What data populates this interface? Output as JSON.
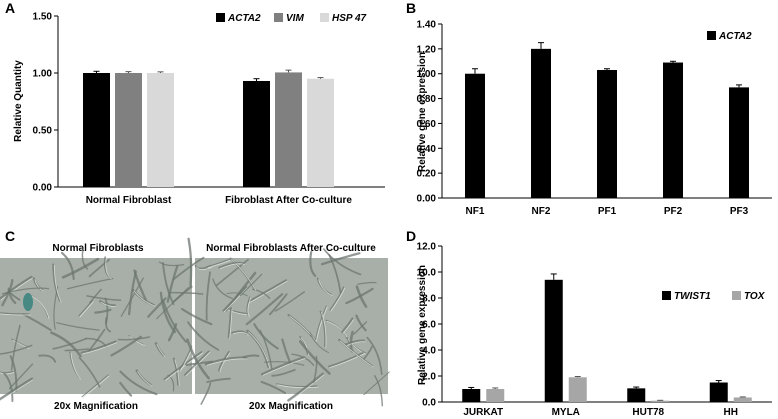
{
  "panels": {
    "a": {
      "letter": "A"
    },
    "b": {
      "letter": "B"
    },
    "c": {
      "letter": "C",
      "left_title": "Normal Fibroblasts",
      "right_title": "Normal Fibroblasts After Co-culture",
      "left_caption": "20x Magnification",
      "right_caption": "20x Magnification"
    },
    "d": {
      "letter": "D"
    }
  },
  "colors": {
    "black": "#000000",
    "dark_gray": "#808080",
    "light_gray": "#d9d9d9",
    "micro_bg": "#a8afa9"
  },
  "chart_data": [
    {
      "id": "a",
      "type": "bar",
      "ylabel": "Relative Quantity",
      "ylim": [
        0,
        1.5
      ],
      "yticks": [
        "0.00",
        "0.50",
        "1.00",
        "1.50"
      ],
      "categories": [
        "Normal Fibroblast",
        "Fibroblast After Co-culture"
      ],
      "legend_position": "top-right",
      "series": [
        {
          "name": "ACTA2",
          "color": "#000000",
          "values": [
            1.0,
            0.93
          ],
          "errors": [
            0.015,
            0.02
          ]
        },
        {
          "name": "VIM",
          "color": "#808080",
          "values": [
            1.0,
            1.005
          ],
          "errors": [
            0.012,
            0.02
          ]
        },
        {
          "name": "HSP 47",
          "color": "#d9d9d9",
          "values": [
            1.0,
            0.95
          ],
          "errors": [
            0.01,
            0.01
          ]
        }
      ]
    },
    {
      "id": "b",
      "type": "bar",
      "ylabel": "Relative gene expression",
      "ylim": [
        0,
        1.4
      ],
      "yticks": [
        "0.00",
        "0.20",
        "0.40",
        "0.60",
        "0.80",
        "1.00",
        "1.20",
        "1.40"
      ],
      "categories": [
        "NF1",
        "NF2",
        "PF1",
        "PF2",
        "PF3"
      ],
      "legend_position": "top-right",
      "series": [
        {
          "name": "ACTA2",
          "color": "#000000",
          "values": [
            1.0,
            1.2,
            1.03,
            1.09,
            0.89
          ],
          "errors": [
            0.04,
            0.05,
            0.01,
            0.01,
            0.02
          ]
        }
      ]
    },
    {
      "id": "d",
      "type": "bar",
      "ylabel": "Relative gene expression",
      "ylim": [
        0,
        12
      ],
      "yticks": [
        "0.0",
        "2.0",
        "4.0",
        "6.0",
        "8.0",
        "10.0",
        "12.0"
      ],
      "categories": [
        "JURKAT",
        "MYLA",
        "HUT78",
        "HH"
      ],
      "legend_position": "top-right",
      "series": [
        {
          "name": "TWIST1",
          "color": "#000000",
          "values": [
            1.0,
            9.4,
            1.05,
            1.5
          ],
          "errors": [
            0.12,
            0.45,
            0.1,
            0.15
          ]
        },
        {
          "name": "TOX",
          "color": "#a6a6a6",
          "values": [
            1.0,
            1.9,
            0.1,
            0.35
          ],
          "errors": [
            0.08,
            0.06,
            0.03,
            0.04
          ]
        }
      ]
    }
  ]
}
